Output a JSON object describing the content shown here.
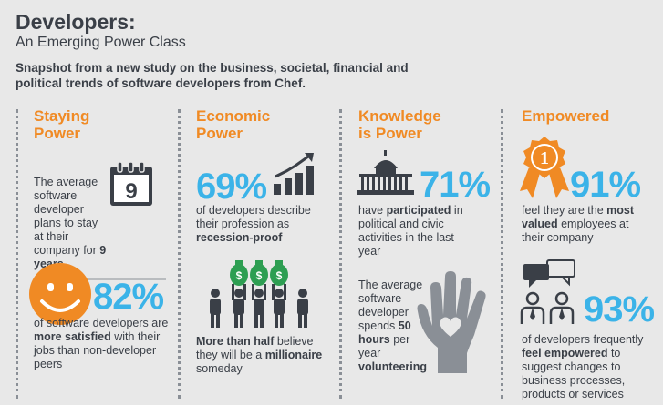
{
  "header": {
    "title": "Developers:",
    "subtitle": "An Emerging Power Class",
    "intro": "Snapshot from a new study on the business, societal, financial and political trends of software developers from Chef."
  },
  "colors": {
    "accent_orange": "#f08a24",
    "accent_blue": "#3bb3e8",
    "text_dark": "#3a3f47",
    "background": "#e8e8e8"
  },
  "columns": [
    {
      "heading": "Staying\nPower",
      "calendar_number": "9",
      "stat1": {
        "pre": "The average software developer plans to stay at their company for ",
        "bold": "9 years",
        "post": ""
      },
      "stat2": {
        "percent": "82%",
        "pre": "of software developers are ",
        "bold": "more satisfied",
        "post": " with their jobs than non-developer peers"
      },
      "icons": [
        "calendar-icon",
        "smiley-icon"
      ]
    },
    {
      "heading": "Economic\nPower",
      "stat1": {
        "percent": "69%",
        "pre": "of developers describe their profession as ",
        "bold": "recession-proof",
        "post": ""
      },
      "stat2": {
        "bold1": "More than half",
        "mid": " believe they will be a ",
        "bold2": "millionaire",
        "post": " someday"
      },
      "icons": [
        "growth-chart-icon",
        "money-bags-people-icon"
      ]
    },
    {
      "heading": "Knowledge\nis Power",
      "stat1": {
        "percent": "71%",
        "pre": "have ",
        "bold": "participated",
        "post": " in political and civic activities in the last year"
      },
      "stat2": {
        "pre": "The average software developer spends ",
        "bold1": "50 hours",
        "mid": " per year ",
        "bold2": "volunteering",
        "post": ""
      },
      "icons": [
        "capitol-building-icon",
        "hand-heart-icon"
      ]
    },
    {
      "heading": "Empowered",
      "stat1": {
        "percent": "91%",
        "pre": "feel they are the ",
        "bold": "most valued",
        "post": " employees at their company"
      },
      "ribbon_number": "1",
      "stat2": {
        "percent": "93%",
        "pre": "of developers frequently ",
        "bold": "feel empowered",
        "post": " to suggest changes to business processes, products or services"
      },
      "icons": [
        "award-ribbon-icon",
        "people-talking-icon"
      ]
    }
  ]
}
